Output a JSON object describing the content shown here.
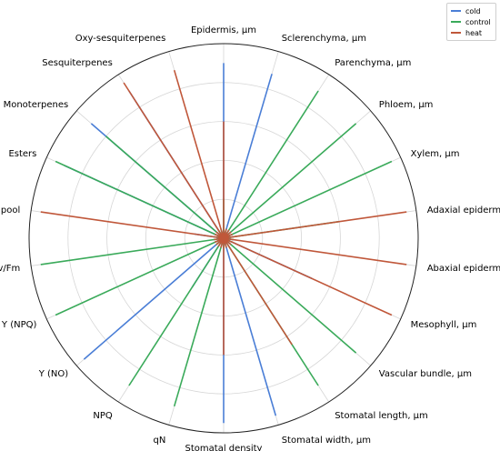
{
  "chart_data": {
    "type": "radar",
    "axes": [
      "Epidermis, µm",
      "Sclerenchyma, µm",
      "Parenchyma, µm",
      "Phloem, µm",
      "Xylem, µm",
      "Adaxial epidermis, µm",
      "Abaxial epidermis, µm",
      "Mesophyll, µm",
      "Vascular bundle, µm",
      "Stomatal length, µm",
      "Stomatal width, µm",
      "Stomatal density",
      "qN",
      "NPQ",
      "Y (NO)",
      "Y (NPQ)",
      "Fv/Fm",
      "LKS pool",
      "Esters",
      "Monoterpenes",
      "Sesquiterpenes",
      "Oxy-sesquiterpenes"
    ],
    "rlim": [
      0,
      1
    ],
    "grid": true,
    "legend_position": "top-right",
    "series": [
      {
        "name": "cold",
        "color": "#4a7ed6",
        "values": [
          0.9,
          0.88,
          0.05,
          0.05,
          0.05,
          0.05,
          0.05,
          0.5,
          0.05,
          0.05,
          0.95,
          0.95,
          0.05,
          0.3,
          0.95,
          0.05,
          0.05,
          0.15,
          0.9,
          0.9,
          0.9,
          0.05
        ]
      },
      {
        "name": "control",
        "color": "#3aaa5a",
        "values": [
          0.2,
          0.05,
          0.9,
          0.9,
          0.95,
          0.6,
          0.05,
          0.05,
          0.9,
          0.9,
          0.05,
          0.05,
          0.9,
          0.9,
          0.05,
          0.95,
          0.95,
          0.05,
          0.95,
          0.8,
          0.05,
          0.05
        ]
      },
      {
        "name": "heat",
        "color": "#c0573a",
        "values": [
          0.6,
          0.05,
          0.05,
          0.05,
          0.05,
          0.95,
          0.95,
          0.95,
          0.05,
          0.65,
          0.05,
          0.6,
          0.05,
          0.05,
          0.05,
          0.05,
          0.05,
          0.95,
          0.05,
          0.05,
          0.95,
          0.9
        ]
      }
    ]
  }
}
